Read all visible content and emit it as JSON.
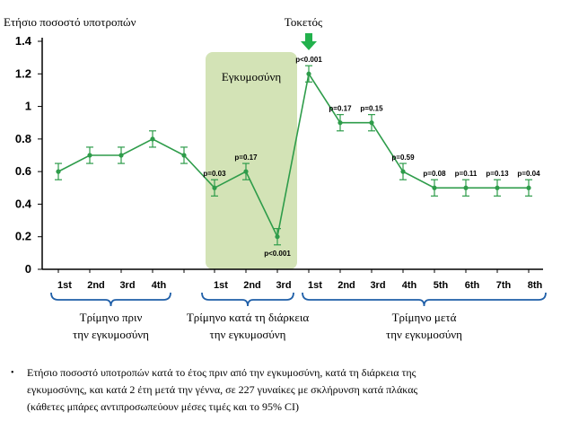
{
  "chart_data": {
    "type": "line",
    "ylabel": "Ετήσιο ποσοστό υποτροπών",
    "ylim": [
      0,
      1.4
    ],
    "yticks": [
      "0",
      "0.2",
      "0.4",
      "0.6",
      "0.8",
      "1",
      "1.2",
      "1.4"
    ],
    "categories": [
      "1st",
      "2nd",
      "3rd",
      "4th",
      "",
      "1st",
      "2nd",
      "3rd",
      "1st",
      "2nd",
      "3rd",
      "4th",
      "5th",
      "6th",
      "7th",
      "8th"
    ],
    "series": [
      {
        "values": [
          0.6,
          0.7,
          0.7,
          0.8,
          0.7,
          0.5,
          0.6,
          0.2,
          1.2,
          0.9,
          0.9,
          0.6,
          0.5,
          0.5,
          0.5,
          0.5
        ],
        "ci_low": [
          0.55,
          0.65,
          0.65,
          0.75,
          0.65,
          0.45,
          0.55,
          0.15,
          1.15,
          0.85,
          0.85,
          0.55,
          0.45,
          0.45,
          0.45,
          0.45
        ],
        "ci_high": [
          0.65,
          0.75,
          0.75,
          0.85,
          0.75,
          0.55,
          0.65,
          0.25,
          1.25,
          0.95,
          0.95,
          0.65,
          0.55,
          0.55,
          0.55,
          0.55
        ],
        "pvalues": [
          "",
          "",
          "",
          "",
          "",
          "p=0.03",
          "p=0.17",
          "p<0.001",
          "p<0.001",
          "p=0.17",
          "p=0.15",
          "p=0.59",
          "p=0.08",
          "p=0.11",
          "p=0.13",
          "p=0.04"
        ]
      }
    ],
    "annotations": {
      "pregnancy_band": "Εγκυμοσύνη",
      "delivery": "Τοκετός"
    },
    "groups": [
      {
        "line1": "Τρίμηνο πριν",
        "line2": "την εγκυμοσύνη"
      },
      {
        "line1": "Τρίμηνο κατά τη διάρκεια",
        "line2": "την εγκυμοσύνη"
      },
      {
        "line1": "Τρίμηνο μετά",
        "line2": "την εγκυμοσύνη"
      }
    ],
    "colors": {
      "line": "#2e9c4a",
      "band": "#d3e3b6",
      "arrow": "#22b14c"
    },
    "grid": false
  },
  "footnote": {
    "line1": "Ετήσιο ποσοστό υποτροπών κατά το έτος πριν από την εγκυμοσύνη, κατά τη διάρκεια της",
    "line2": "εγκυμοσύνης, και κατά 2 έτη μετά την γέννα, σε 227 γυναίκες με σκλήρυνση κατά πλάκας",
    "line3": "(κάθετες μπάρες αντιπροσωπεύουν μέσες τιμές και το 95% CI)"
  }
}
